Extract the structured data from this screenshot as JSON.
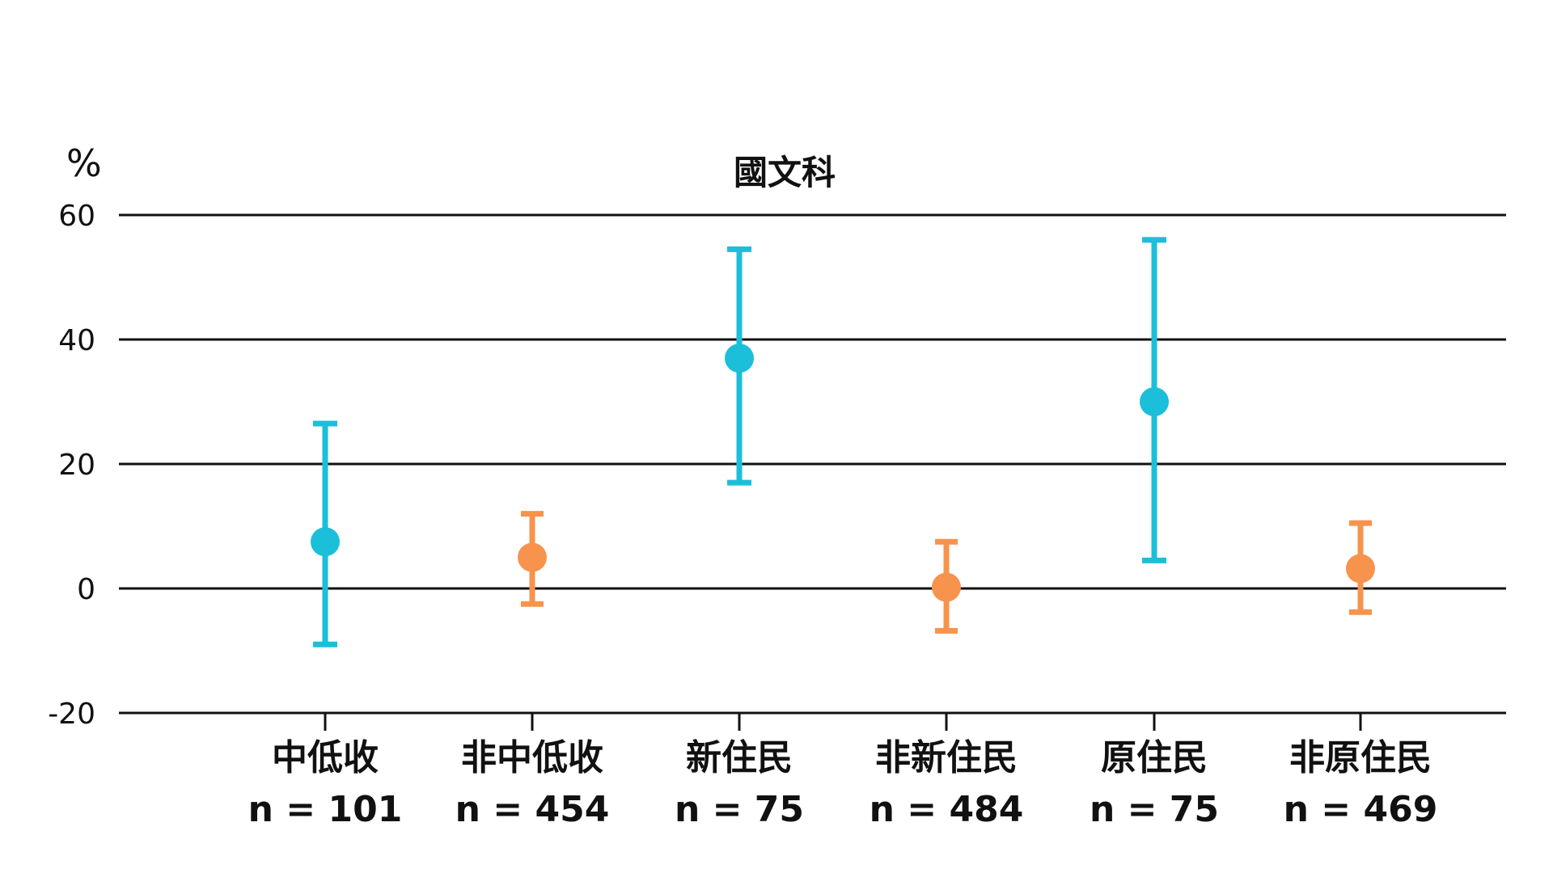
{
  "chart_data": {
    "type": "scatter",
    "title": "國文科",
    "ylabel": "%",
    "ylim": [
      -20,
      60
    ],
    "yticks": [
      -20,
      0,
      20,
      40,
      60
    ],
    "ytick_labels": [
      "-20",
      "0",
      "20",
      "40",
      "60"
    ],
    "grid": true,
    "categories": [
      "中低收",
      "非中低收",
      "新住民",
      "非新住民",
      "原住民",
      "非原住民"
    ],
    "sample_labels": [
      "n = 101",
      "n = 454",
      "n = 75",
      "n = 484",
      "n = 75",
      "n = 469"
    ],
    "points": [
      {
        "category": "中低收",
        "n": 101,
        "value": 7.5,
        "lower": -9,
        "upper": 26.5,
        "color": "#1bbfda"
      },
      {
        "category": "非中低收",
        "n": 454,
        "value": 5.0,
        "lower": -2.5,
        "upper": 12.0,
        "color": "#f7934c"
      },
      {
        "category": "新住民",
        "n": 75,
        "value": 37.0,
        "lower": 17.0,
        "upper": 54.5,
        "color": "#1bbfda"
      },
      {
        "category": "非新住民",
        "n": 484,
        "value": 0.2,
        "lower": -6.8,
        "upper": 7.5,
        "color": "#f7934c"
      },
      {
        "category": "原住民",
        "n": 75,
        "value": 30.0,
        "lower": 4.5,
        "upper": 56.0,
        "color": "#1bbfda"
      },
      {
        "category": "非原住民",
        "n": 469,
        "value": 3.2,
        "lower": -3.8,
        "upper": 10.5,
        "color": "#f7934c"
      }
    ],
    "colors": {
      "highlight": "#1bbfda",
      "comparison": "#f7934c",
      "axis": "#111111"
    }
  }
}
